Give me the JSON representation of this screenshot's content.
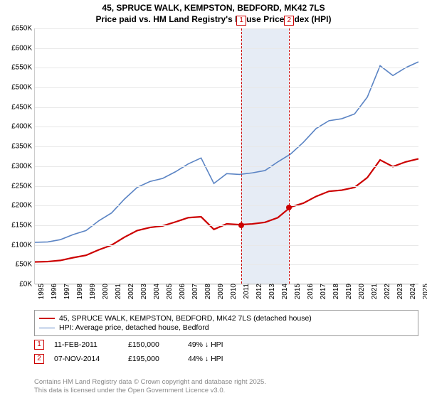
{
  "title": {
    "line1": "45, SPRUCE WALK, KEMPSTON, BEDFORD, MK42 7LS",
    "line2": "Price paid vs. HM Land Registry's House Price Index (HPI)"
  },
  "chart": {
    "type": "line",
    "background_color": "#ffffff",
    "grid_color": "#e8e8e8",
    "axis_color": "#cccccc",
    "tick_fontsize": 10,
    "x": {
      "min": 1995,
      "max": 2025,
      "ticks": [
        1995,
        1996,
        1997,
        1998,
        1999,
        2000,
        2001,
        2002,
        2003,
        2004,
        2005,
        2006,
        2007,
        2008,
        2009,
        2010,
        2011,
        2012,
        2013,
        2014,
        2015,
        2016,
        2017,
        2018,
        2019,
        2020,
        2021,
        2022,
        2023,
        2024,
        2025
      ]
    },
    "y": {
      "min": 0,
      "max": 650000,
      "step": 50000,
      "format_prefix": "£",
      "format_suffix": "K",
      "format_div": 1000
    },
    "shade": {
      "start": 2011.12,
      "end": 2014.85,
      "color": "#e6ecf5"
    },
    "reference_lines": [
      {
        "label": "1",
        "x": 2011.12,
        "color": "#cc0000",
        "dash": "4,3"
      },
      {
        "label": "2",
        "x": 2014.85,
        "color": "#cc0000",
        "dash": "4,3"
      }
    ],
    "sale_markers": [
      {
        "x": 2011.12,
        "y": 150000
      },
      {
        "x": 2014.85,
        "y": 195000
      }
    ],
    "series": [
      {
        "name": "HPI: Average price, detached house, Bedford",
        "color": "#5b84c4",
        "width": 1.6,
        "x": [
          1995,
          1996,
          1997,
          1998,
          1999,
          2000,
          2001,
          2002,
          2003,
          2004,
          2005,
          2006,
          2007,
          2008,
          2009,
          2010,
          2011,
          2012,
          2013,
          2014,
          2015,
          2016,
          2017,
          2018,
          2019,
          2020,
          2021,
          2022,
          2023,
          2024,
          2025
        ],
        "y": [
          105000,
          106000,
          112000,
          125000,
          135000,
          160000,
          180000,
          215000,
          245000,
          260000,
          268000,
          285000,
          305000,
          320000,
          255000,
          280000,
          278000,
          282000,
          288000,
          310000,
          330000,
          360000,
          395000,
          415000,
          420000,
          432000,
          475000,
          555000,
          530000,
          550000,
          565000
        ]
      },
      {
        "name": "45, SPRUCE WALK, KEMPSTON, BEDFORD, MK42 7LS (detached house)",
        "color": "#cc0000",
        "width": 2.2,
        "x": [
          1995,
          1996,
          1997,
          1998,
          1999,
          2000,
          2001,
          2002,
          2003,
          2004,
          2005,
          2006,
          2007,
          2008,
          2009,
          2010,
          2011,
          2012,
          2013,
          2014,
          2015,
          2016,
          2017,
          2018,
          2019,
          2020,
          2021,
          2022,
          2023,
          2024,
          2025
        ],
        "y": [
          55000,
          56000,
          59000,
          66000,
          72000,
          86000,
          98000,
          118000,
          135000,
          143000,
          147000,
          157000,
          168000,
          170000,
          138000,
          152000,
          150000,
          152000,
          156000,
          168000,
          195000,
          205000,
          222000,
          235000,
          238000,
          245000,
          270000,
          315000,
          298000,
          310000,
          318000
        ]
      }
    ]
  },
  "legend": {
    "border_color": "#999999",
    "items": [
      {
        "label": "45, SPRUCE WALK, KEMPSTON, BEDFORD, MK42 7LS (detached house)",
        "color": "#cc0000",
        "width": 2.2
      },
      {
        "label": "HPI: Average price, detached house, Bedford",
        "color": "#5b84c4",
        "width": 1.6
      }
    ]
  },
  "data_rows": [
    {
      "num": "1",
      "date": "11-FEB-2011",
      "price": "£150,000",
      "hpi_diff": "49% ↓ HPI"
    },
    {
      "num": "2",
      "date": "07-NOV-2014",
      "price": "£195,000",
      "hpi_diff": "44% ↓ HPI"
    }
  ],
  "footer": {
    "line1": "Contains HM Land Registry data © Crown copyright and database right 2025.",
    "line2": "This data is licensed under the Open Government Licence v3.0."
  }
}
